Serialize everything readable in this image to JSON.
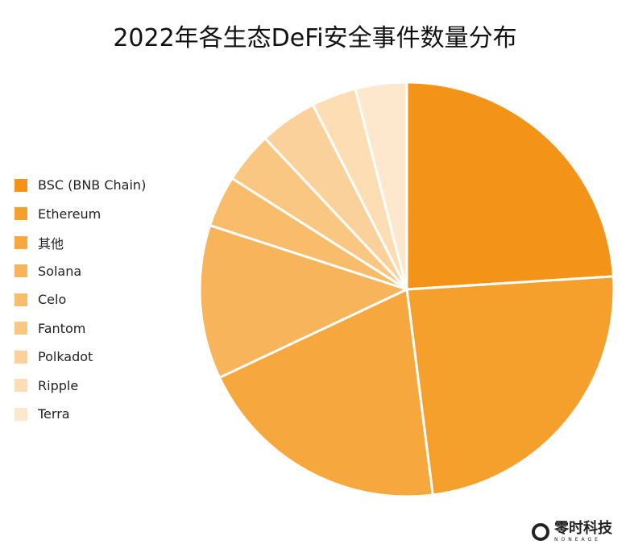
{
  "chart_data": {
    "type": "pie",
    "title": "2022年各生态DeFi安全事件数量分布",
    "categories": [
      "BSC (BNB Chain)",
      "Ethereum",
      "其他",
      "Solana",
      "Celo",
      "Fantom",
      "Polkadot",
      "Ripple",
      "Terra"
    ],
    "values": [
      24,
      24,
      20,
      12,
      4,
      4,
      4.5,
      3.5,
      4
    ],
    "unit": "percent (estimated from slice angles)",
    "colors": [
      "#F39317",
      "#F5A02C",
      "#F6A83E",
      "#F7B45A",
      "#F8BC6B",
      "#F9C782",
      "#FAD19A",
      "#FCDDB4",
      "#FDE7CD"
    ],
    "legend_position": "left",
    "start_angle": "12 o'clock, clockwise"
  },
  "logo": {
    "name_cn": "零时科技",
    "name_en": "NONEAGE"
  }
}
